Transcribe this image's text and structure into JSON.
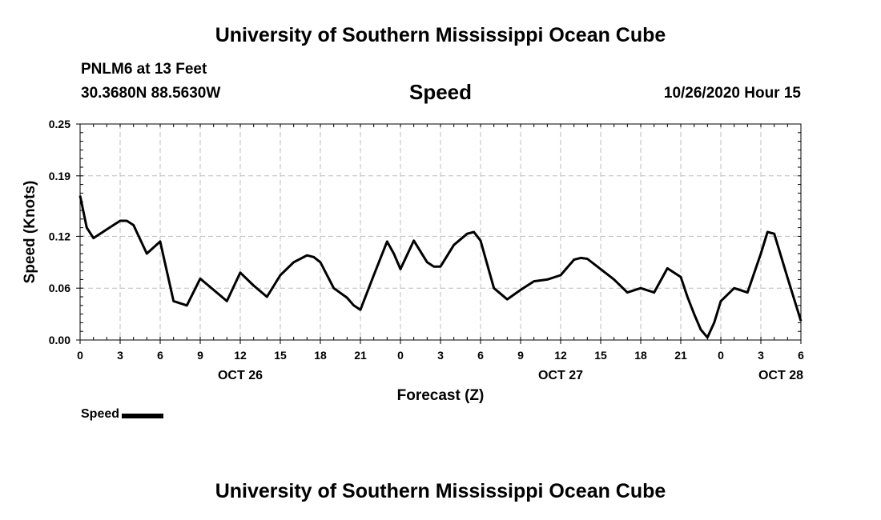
{
  "header": {
    "title": "University of Southern Mississippi Ocean Cube",
    "station": "PNLM6 at 13 Feet",
    "coords": "30.3680N 88.5630W",
    "datetime": "10/26/2020 Hour 15"
  },
  "footer": {
    "title": "University of Southern Mississippi Ocean Cube"
  },
  "legend": {
    "label": "Speed"
  },
  "chart_data": {
    "type": "line",
    "title": "Speed",
    "xlabel": "Forecast (Z)",
    "ylabel": "Speed (Knots)",
    "ylim": [
      0,
      0.25
    ],
    "yticks": [
      "0.25",
      "0.19",
      "0.12",
      "0.06",
      "0.00"
    ],
    "ytick_values": [
      0.25,
      0.19,
      0.12,
      0.06,
      0.0
    ],
    "xlim": [
      0,
      54
    ],
    "xticks": [
      "0",
      "3",
      "6",
      "9",
      "12",
      "15",
      "18",
      "21",
      "0",
      "3",
      "6",
      "9",
      "12",
      "15",
      "18",
      "21",
      "0",
      "3",
      "6"
    ],
    "date_labels": [
      {
        "label": "OCT 26",
        "hour": 12
      },
      {
        "label": "OCT 27",
        "hour": 36
      },
      {
        "label": "OCT 28",
        "hour": 52.5
      }
    ],
    "grid": true,
    "line_color": "#000000",
    "series": [
      {
        "name": "Speed",
        "x": [
          0,
          0.5,
          1,
          2,
          3,
          3.5,
          4,
          5,
          6,
          7,
          8,
          9,
          10,
          11,
          12,
          13,
          14,
          15,
          16,
          17,
          17.5,
          18,
          19,
          20,
          20.5,
          21,
          22,
          23,
          23.5,
          24,
          25,
          26,
          26.5,
          27,
          28,
          29,
          29.5,
          30,
          31,
          32,
          33,
          34,
          35,
          36,
          37,
          37.5,
          38,
          39,
          40,
          41,
          42,
          43,
          44,
          45,
          45.5,
          46,
          46.5,
          47,
          47.5,
          48,
          49,
          50,
          51,
          51.5,
          52,
          53,
          54
        ],
        "values": [
          0.167,
          0.13,
          0.118,
          0.128,
          0.138,
          0.138,
          0.133,
          0.1,
          0.114,
          0.045,
          0.04,
          0.071,
          0.058,
          0.045,
          0.078,
          0.063,
          0.05,
          0.075,
          0.09,
          0.098,
          0.096,
          0.09,
          0.06,
          0.049,
          0.04,
          0.035,
          0.075,
          0.114,
          0.1,
          0.082,
          0.115,
          0.09,
          0.085,
          0.085,
          0.11,
          0.123,
          0.125,
          0.115,
          0.06,
          0.047,
          0.058,
          0.068,
          0.07,
          0.075,
          0.093,
          0.095,
          0.094,
          0.082,
          0.07,
          0.055,
          0.06,
          0.055,
          0.083,
          0.073,
          0.05,
          0.03,
          0.012,
          0.003,
          0.02,
          0.045,
          0.06,
          0.055,
          0.1,
          0.125,
          0.123,
          0.072,
          0.022
        ]
      }
    ]
  }
}
